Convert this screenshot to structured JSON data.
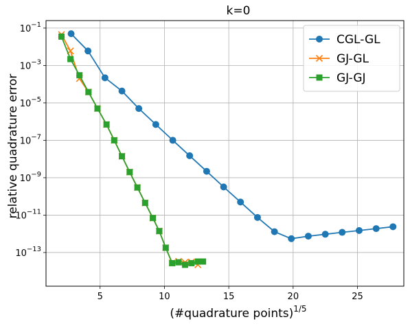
{
  "chart_data": {
    "type": "line",
    "title": "k=0",
    "xlabel": "(#quadrature points)",
    "xlabel_sup": "1/5",
    "ylabel": "relative quadrature error",
    "xlim": [
      0.8,
      28.6
    ],
    "ylim_log10": [
      -14.8,
      -0.6
    ],
    "y_scale": "log",
    "grid": true,
    "legend_position": "top-right",
    "x_ticks": [
      5,
      10,
      15,
      20,
      25
    ],
    "x_tick_labels": [
      "5",
      "10",
      "15",
      "20",
      "25"
    ],
    "y_ticks_exp": [
      -1,
      -3,
      -5,
      -7,
      -9,
      -11,
      -13
    ],
    "y_tick_labels": [
      {
        "base": "10",
        "exp": "−1"
      },
      {
        "base": "10",
        "exp": "−3"
      },
      {
        "base": "10",
        "exp": "−5"
      },
      {
        "base": "10",
        "exp": "−7"
      },
      {
        "base": "10",
        "exp": "−9"
      },
      {
        "base": "10",
        "exp": "−11"
      },
      {
        "base": "10",
        "exp": "−13"
      }
    ],
    "series": [
      {
        "name": "CGL-GL",
        "color": "#1f77b4",
        "marker": "circle",
        "x": [
          2.75,
          4.06,
          5.38,
          6.7,
          8.01,
          9.33,
          10.65,
          11.96,
          13.28,
          14.6,
          15.91,
          17.23,
          18.55,
          19.86,
          21.18,
          22.5,
          23.81,
          25.13,
          26.45,
          27.76
        ],
        "y": [
          0.05,
          0.006,
          0.00022,
          4.3e-05,
          5e-06,
          7e-07,
          1e-07,
          1.5e-08,
          2.2e-09,
          3.2e-10,
          5e-11,
          7.5e-12,
          1.3e-12,
          5.5e-13,
          7.5e-13,
          9.5e-13,
          1.2e-12,
          1.5e-12,
          1.9e-12,
          2.4e-12
        ]
      },
      {
        "name": "GJ-GL",
        "color": "#ff7f0e",
        "marker": "x",
        "x": [
          2.0,
          2.7,
          3.4,
          4.1,
          4.8,
          5.5,
          6.1,
          6.7,
          7.3,
          7.9,
          8.5,
          9.1,
          9.6,
          10.1,
          10.6,
          11.1,
          11.6,
          12.1,
          12.6
        ],
        "y": [
          0.045,
          0.006,
          0.0002,
          3.8e-05,
          5e-06,
          7e-07,
          1e-07,
          1.4e-08,
          2e-09,
          3e-10,
          4.5e-11,
          7e-12,
          1.4e-12,
          1.8e-13,
          2.8e-14,
          3.4e-14,
          3e-14,
          3.1e-14,
          2.2e-14
        ]
      },
      {
        "name": "GJ-GJ",
        "color": "#2ca02c",
        "marker": "square",
        "x": [
          2.0,
          2.7,
          3.4,
          4.1,
          4.8,
          5.5,
          6.1,
          6.7,
          7.3,
          7.9,
          8.5,
          9.1,
          9.6,
          10.1,
          10.6,
          11.1,
          11.6,
          12.1,
          12.6,
          13.0
        ],
        "y": [
          0.035,
          0.0022,
          0.0003,
          3.8e-05,
          5e-06,
          7e-07,
          1e-07,
          1.4e-08,
          2e-09,
          3e-10,
          4.5e-11,
          7e-12,
          1.4e-12,
          1.8e-13,
          2.7e-14,
          3e-14,
          2.2e-14,
          2.7e-14,
          3.3e-14,
          3.3e-14
        ]
      }
    ]
  }
}
